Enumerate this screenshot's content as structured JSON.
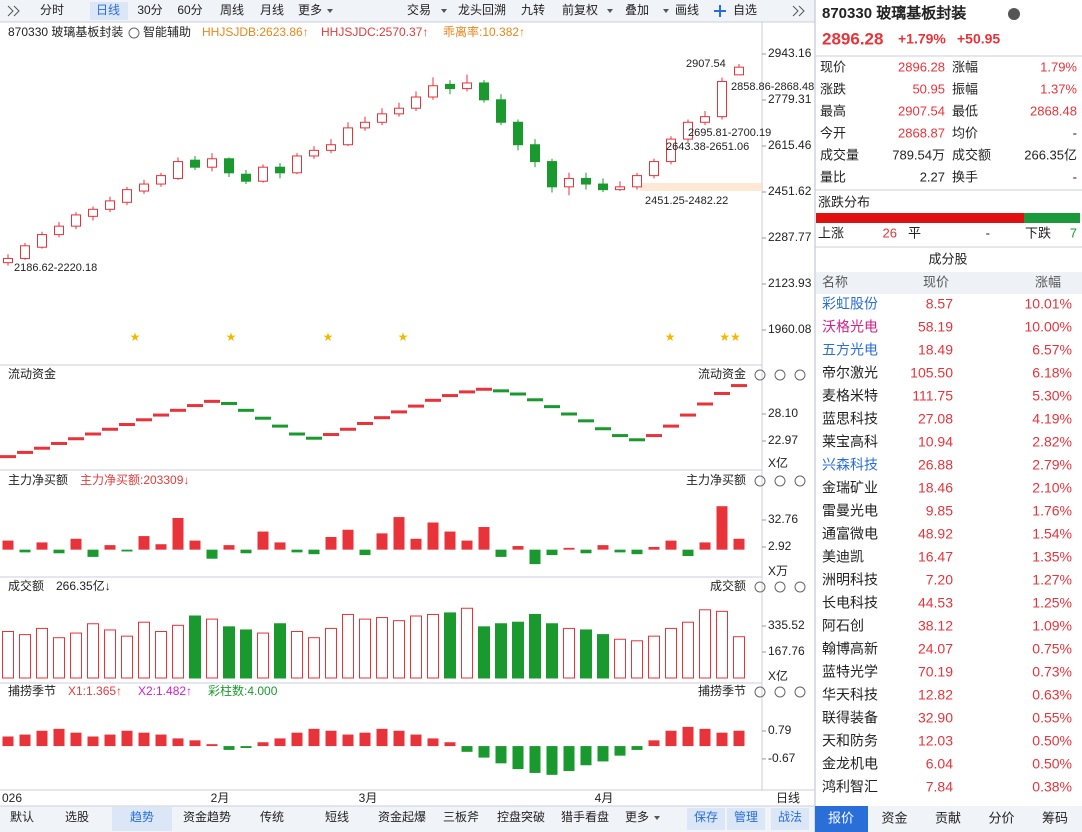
{
  "toolbar": {
    "periods": [
      "分时",
      "日线",
      "30分",
      "60分",
      "周线",
      "月线",
      "更多"
    ],
    "tools": [
      "交易",
      "龙头回溯",
      "九转",
      "前复权",
      "叠加",
      "画线",
      "自选"
    ]
  },
  "main_chart": {
    "type": "candlestick",
    "title": "870330 玻璃基板封装",
    "assistant": "智能辅助",
    "indicators": [
      {
        "text": "HHJSJDB:2623.86↑",
        "color": "#e8861a"
      },
      {
        "text": "HHJSJDC:2570.37↑",
        "color": "#e03c3c"
      },
      {
        "text": "乖离率:10.382↑",
        "color": "#e8861a"
      }
    ],
    "open": [
      2200,
      2215,
      2255,
      2300,
      2330,
      2365,
      2390,
      2415,
      2455,
      2480,
      2500,
      2565,
      2540,
      2570,
      2515,
      2490,
      2540,
      2520,
      2580,
      2600,
      2620,
      2680,
      2700,
      2730,
      2750,
      2790,
      2835,
      2820,
      2840,
      2780,
      2700,
      2620,
      2560,
      2470,
      2500,
      2480,
      2460,
      2470,
      2510,
      2560,
      2640,
      2700,
      2720,
      2868.87
    ],
    "high": [
      2230,
      2270,
      2310,
      2345,
      2380,
      2400,
      2435,
      2470,
      2495,
      2520,
      2575,
      2580,
      2590,
      2575,
      2530,
      2550,
      2555,
      2590,
      2615,
      2640,
      2700,
      2720,
      2750,
      2770,
      2810,
      2860,
      2850,
      2870,
      2850,
      2800,
      2710,
      2640,
      2570,
      2520,
      2520,
      2500,
      2490,
      2520,
      2570,
      2650,
      2710,
      2740,
      2858.86,
      2907.54
    ],
    "low": [
      2190,
      2210,
      2250,
      2290,
      2320,
      2350,
      2380,
      2405,
      2445,
      2470,
      2495,
      2530,
      2525,
      2505,
      2480,
      2485,
      2500,
      2515,
      2570,
      2590,
      2615,
      2670,
      2690,
      2720,
      2740,
      2780,
      2800,
      2810,
      2770,
      2690,
      2600,
      2540,
      2450,
      2440,
      2460,
      2451.25,
      2455,
      2460,
      2500,
      2550,
      2630,
      2690,
      2710,
      2868.48
    ],
    "close": [
      2215,
      2260,
      2300,
      2330,
      2370,
      2390,
      2420,
      2460,
      2480,
      2510,
      2560,
      2540,
      2570,
      2520,
      2490,
      2540,
      2520,
      2580,
      2600,
      2620,
      2680,
      2700,
      2730,
      2750,
      2790,
      2830,
      2820,
      2840,
      2780,
      2700,
      2620,
      2560,
      2470,
      2500,
      2480,
      2460,
      2470,
      2510,
      2560,
      2640,
      2700,
      2720,
      2845.33,
      2896.28
    ],
    "ylim": [
      1906.7,
      2975.2
    ],
    "yticks": [
      2943.16,
      2779.31,
      2615.46,
      2451.62,
      2287.77,
      2123.93,
      1960.08
    ],
    "annotations": [
      "2907.54",
      "2858.86-2868.48",
      "2695.81-2700.19",
      "2643.38-2651.06",
      "2451.25-2482.22",
      "2186.62-2220.18"
    ]
  },
  "flow_panel": {
    "type": "step",
    "title": "流动资金",
    "label_right": "流动资金",
    "unit": "X亿",
    "values": [
      20.0,
      20.8,
      21.6,
      22.5,
      23.4,
      24.3,
      25.2,
      26.1,
      27.0,
      27.9,
      28.8,
      29.7,
      30.5,
      30.1,
      28.8,
      27.3,
      25.8,
      24.3,
      23.5,
      24.2,
      25.2,
      26.3,
      27.4,
      28.5,
      29.6,
      30.7,
      31.6,
      32.3,
      32.8,
      32.5,
      31.9,
      30.8,
      29.5,
      28.1,
      26.8,
      25.3,
      24.0,
      23.2,
      24.0,
      25.8,
      27.9,
      30.0,
      32.0,
      33.5
    ],
    "ylim": [
      18.03,
      34.56
    ],
    "yticks": [
      {
        "value": 28.1,
        "label": "28.10"
      },
      22.97
    ]
  },
  "netbuy_panel": {
    "type": "bar",
    "title": "主力净买额",
    "indicator": {
      "text": "主力净买额:203309↓",
      "color": "#e03c3c"
    },
    "label_right": "主力净买额",
    "unit": "X万",
    "values": [
      10,
      -3,
      8,
      -4,
      12,
      -8,
      5,
      -2,
      15,
      6,
      35,
      10,
      -10,
      5,
      -4,
      20,
      8,
      -3,
      -5,
      14,
      22,
      -6,
      18,
      36,
      12,
      30,
      20,
      10,
      25,
      -8,
      4,
      -16,
      -6,
      2,
      -4,
      5,
      -3,
      -5,
      3,
      10,
      -7,
      8,
      48,
      12
    ],
    "ylim": [
      -28.0,
      71.44
    ],
    "yticks": [
      32.76,
      2.92
    ]
  },
  "turnover_panel": {
    "type": "bar",
    "title": "成交额",
    "indicator": {
      "text": "266.35亿↓",
      "color": "#222"
    },
    "label_right": "成交额",
    "unit": "X亿",
    "values": [
      300,
      280,
      320,
      260,
      290,
      350,
      310,
      270,
      360,
      300,
      340,
      400,
      380,
      330,
      310,
      290,
      350,
      300,
      260,
      320,
      410,
      380,
      390,
      370,
      400,
      410,
      420,
      450,
      330,
      350,
      360,
      410,
      350,
      320,
      310,
      280,
      250,
      240,
      270,
      320,
      360,
      440,
      430,
      266.35
    ],
    "ylim": [
      -12.9,
      554.9
    ],
    "yticks": [
      335.52,
      167.76
    ]
  },
  "season_panel": {
    "type": "bar",
    "title": "捕捞季节",
    "indicators": [
      {
        "text": "X1:1.365↑",
        "color": "#e03c3c"
      },
      {
        "text": "X2:1.482↑",
        "color": "#d020d0"
      },
      {
        "text": "彩柱数:4.000",
        "color": "#1a9a2e"
      }
    ],
    "label_right": "捕捞季节",
    "values": [
      0.5,
      0.6,
      0.8,
      0.9,
      0.7,
      0.5,
      0.6,
      0.8,
      0.7,
      0.6,
      0.4,
      0.3,
      0.1,
      -0.2,
      -0.1,
      0.2,
      0.4,
      0.7,
      0.9,
      0.8,
      0.6,
      0.7,
      0.9,
      0.8,
      0.6,
      0.4,
      0.2,
      -0.3,
      -0.6,
      -0.9,
      -1.2,
      -1.4,
      -1.5,
      -1.3,
      -1.0,
      -0.8,
      -0.5,
      -0.2,
      0.3,
      0.8,
      1.0,
      0.9,
      0.7,
      0.8
    ],
    "ylim": [
      -2.03,
      2.56
    ],
    "yticks": [
      0.79,
      -0.67
    ]
  },
  "x_axis": [
    "026",
    "2月",
    "3月",
    "4月"
  ],
  "period_label": "日线",
  "bottom_tabs": [
    "默认",
    "选股",
    "趋势",
    "资金趋势",
    "传统",
    "短线",
    "资金起爆",
    "三板斧",
    "控盘突破",
    "猎手看盘",
    "更多"
  ],
  "bottom_actions": [
    "保存",
    "管理",
    "战法"
  ],
  "quote": {
    "title": "870330 玻璃基板封装",
    "price": "2896.28",
    "change_pct": "+1.79%",
    "change": "+50.95",
    "rows": [
      [
        "现价",
        "2896.28",
        "涨幅",
        "1.79%"
      ],
      [
        "涨跌",
        "50.95",
        "振幅",
        "1.37%"
      ],
      [
        "最高",
        "2907.54",
        "最低",
        "2868.48"
      ],
      [
        "今开",
        "2868.87",
        "均价",
        "-"
      ],
      [
        "成交量",
        "789.54万",
        "成交额",
        "266.35亿"
      ],
      [
        "量比",
        "2.27",
        "换手",
        "-"
      ]
    ],
    "distribution": {
      "title": "涨跌分布",
      "up_label": "上涨",
      "up": 26,
      "flat_label": "平",
      "flat": "-",
      "down_label": "下跌",
      "down": 7
    },
    "components": {
      "title": "成分股",
      "headers": [
        "名称",
        "现价",
        "涨幅"
      ],
      "rows": [
        {
          "name": "彩虹股份",
          "price": "8.57",
          "change": "10.01%",
          "color": "#2a6ed8"
        },
        {
          "name": "沃格光电",
          "price": "58.19",
          "change": "10.00%",
          "color": "#d0208a"
        },
        {
          "name": "五方光电",
          "price": "18.49",
          "change": "6.57%",
          "color": "#2a6ed8"
        },
        {
          "name": "帝尔激光",
          "price": "105.50",
          "change": "6.18%"
        },
        {
          "name": "麦格米特",
          "price": "111.75",
          "change": "5.30%"
        },
        {
          "name": "蓝思科技",
          "price": "27.08",
          "change": "4.19%"
        },
        {
          "name": "莱宝高科",
          "price": "10.94",
          "change": "2.82%"
        },
        {
          "name": "兴森科技",
          "price": "26.88",
          "change": "2.79%",
          "color": "#2a6ed8"
        },
        {
          "name": "金瑞矿业",
          "price": "18.46",
          "change": "2.10%"
        },
        {
          "name": "雷曼光电",
          "price": "9.85",
          "change": "1.76%"
        },
        {
          "name": "通富微电",
          "price": "48.92",
          "change": "1.54%"
        },
        {
          "name": "美迪凯",
          "price": "16.47",
          "change": "1.35%"
        },
        {
          "name": "洲明科技",
          "price": "7.20",
          "change": "1.27%"
        },
        {
          "name": "长电科技",
          "price": "44.53",
          "change": "1.25%"
        },
        {
          "name": "阿石创",
          "price": "38.12",
          "change": "1.09%"
        },
        {
          "name": "翰博高新",
          "price": "24.07",
          "change": "0.75%"
        },
        {
          "name": "蓝特光学",
          "price": "70.19",
          "change": "0.73%"
        },
        {
          "name": "华天科技",
          "price": "12.82",
          "change": "0.63%"
        },
        {
          "name": "联得装备",
          "price": "32.90",
          "change": "0.55%"
        },
        {
          "name": "天和防务",
          "price": "12.03",
          "change": "0.50%"
        },
        {
          "name": "金龙机电",
          "price": "6.04",
          "change": "0.50%"
        },
        {
          "name": "鸿利智汇",
          "price": "7.84",
          "change": "0.38%"
        }
      ]
    },
    "tabs": [
      "报价",
      "资金",
      "贡献",
      "分价",
      "筹码"
    ]
  }
}
